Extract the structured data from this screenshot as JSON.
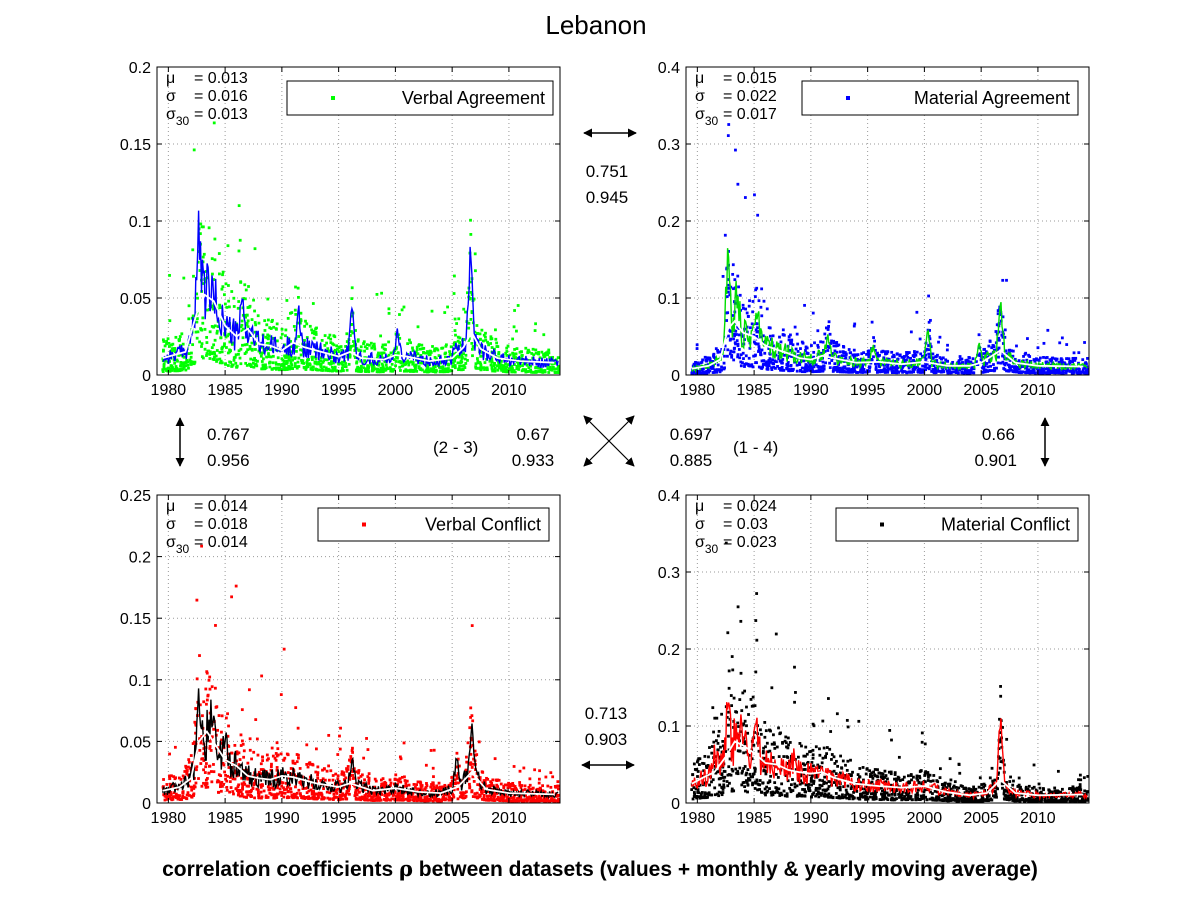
{
  "figure": {
    "title": "Lebanon",
    "xlabel_prefix": "correlation coefficients ",
    "xlabel_symbol": "ρ",
    "xlabel_suffix": " between datasets (values + monthly & yearly moving average)"
  },
  "symbols": {
    "mu": "μ",
    "sigma": "σ",
    "sigma30_base": "σ",
    "sigma30_sub": "30"
  },
  "correlations": {
    "top_h": {
      "a": "0.751",
      "b": "0.945"
    },
    "left_v": {
      "a": "0.767",
      "b": "0.956"
    },
    "right_v": {
      "a": "0.66",
      "b": "0.901"
    },
    "diag_23": {
      "label": "(2 - 3)",
      "a": "0.67",
      "b": "0.933"
    },
    "diag_14": {
      "label": "(1 - 4)",
      "a": "0.697",
      "b": "0.885"
    },
    "bottom_h": {
      "a": "0.713",
      "b": "0.903"
    }
  },
  "chart_data": [
    {
      "type": "scatter",
      "legend": "Verbal Agreement",
      "legend_loc": "top-right",
      "grid": true,
      "xlim": [
        1979,
        2014.5
      ],
      "ylim": [
        0,
        0.2
      ],
      "xticks": [
        "1980",
        "1985",
        "1990",
        "1995",
        "2000",
        "2005",
        "2010"
      ],
      "yticks": [
        "0",
        "0.05",
        "0.1",
        "0.15",
        "0.2"
      ],
      "stats": {
        "mu": "= 0.013",
        "sigma": "= 0.016",
        "sigma30": "= 0.013"
      },
      "colors": {
        "points": "#00ff00",
        "monthly": "#0000ff",
        "yearly": "#ffffff"
      },
      "mean": 0.013,
      "spikes": [
        [
          1982.7,
          0.107
        ],
        [
          1983.5,
          0.06
        ],
        [
          1986.5,
          0.05
        ],
        [
          1991.5,
          0.043
        ],
        [
          1996.2,
          0.05
        ],
        [
          2000.2,
          0.033
        ],
        [
          2005.3,
          0.025
        ],
        [
          2006.6,
          0.085
        ]
      ],
      "yearly": [
        [
          1979.5,
          0.011
        ],
        [
          1980.5,
          0.013
        ],
        [
          1981.5,
          0.015
        ],
        [
          1982.5,
          0.04
        ],
        [
          1983.2,
          0.052
        ],
        [
          1984,
          0.048
        ],
        [
          1985,
          0.032
        ],
        [
          1986,
          0.025
        ],
        [
          1987,
          0.03
        ],
        [
          1988,
          0.02
        ],
        [
          1989,
          0.019
        ],
        [
          1990,
          0.016
        ],
        [
          1991,
          0.021
        ],
        [
          1992,
          0.018
        ],
        [
          1993,
          0.016
        ],
        [
          1995,
          0.012
        ],
        [
          1996,
          0.015
        ],
        [
          1997,
          0.011
        ],
        [
          1999,
          0.01
        ],
        [
          2000,
          0.013
        ],
        [
          2001,
          0.012
        ],
        [
          2003,
          0.009
        ],
        [
          2005,
          0.011
        ],
        [
          2006,
          0.018
        ],
        [
          2006.7,
          0.028
        ],
        [
          2007.5,
          0.017
        ],
        [
          2009,
          0.011
        ],
        [
          2011,
          0.009
        ],
        [
          2014,
          0.008
        ]
      ]
    },
    {
      "type": "scatter",
      "legend": "Material Agreement",
      "legend_loc": "top-right",
      "grid": true,
      "xlim": [
        1979,
        2014.5
      ],
      "ylim": [
        0,
        0.4
      ],
      "xticks": [
        "1980",
        "1985",
        "1990",
        "1995",
        "2000",
        "2005",
        "2010"
      ],
      "yticks": [
        "0",
        "0.1",
        "0.2",
        "0.3",
        "0.4"
      ],
      "stats": {
        "mu": "= 0.015",
        "sigma": "= 0.022",
        "sigma30": "= 0.017"
      },
      "colors": {
        "points": "#0000ff",
        "monthly": "#00dd00",
        "yearly": "#ffffff"
      },
      "mean": 0.015,
      "spikes": [
        [
          1982.7,
          0.18
        ],
        [
          1983.5,
          0.12
        ],
        [
          1985.3,
          0.09
        ],
        [
          1991.5,
          0.065
        ],
        [
          1995.5,
          0.045
        ],
        [
          2000.3,
          0.075
        ],
        [
          2004.8,
          0.045
        ],
        [
          2006.7,
          0.105
        ]
      ],
      "yearly": [
        [
          1979.5,
          0.008
        ],
        [
          1981,
          0.012
        ],
        [
          1982,
          0.02
        ],
        [
          1982.7,
          0.06
        ],
        [
          1983.3,
          0.07
        ],
        [
          1984,
          0.055
        ],
        [
          1985,
          0.05
        ],
        [
          1986,
          0.038
        ],
        [
          1987,
          0.033
        ],
        [
          1988,
          0.028
        ],
        [
          1989,
          0.022
        ],
        [
          1990,
          0.02
        ],
        [
          1991,
          0.025
        ],
        [
          1992,
          0.022
        ],
        [
          1994,
          0.016
        ],
        [
          1996,
          0.017
        ],
        [
          1998,
          0.014
        ],
        [
          2000,
          0.017
        ],
        [
          2002,
          0.012
        ],
        [
          2004,
          0.012
        ],
        [
          2005,
          0.016
        ],
        [
          2006.7,
          0.032
        ],
        [
          2008,
          0.016
        ],
        [
          2010,
          0.012
        ],
        [
          2014,
          0.011
        ]
      ]
    },
    {
      "type": "scatter",
      "legend": "Verbal Conflict",
      "legend_loc": "top-right",
      "grid": true,
      "xlim": [
        1979,
        2014.5
      ],
      "ylim": [
        0,
        0.25
      ],
      "xticks": [
        "1980",
        "1985",
        "1990",
        "1995",
        "2000",
        "2005",
        "2010"
      ],
      "yticks": [
        "0",
        "0.05",
        "0.1",
        "0.15",
        "0.2",
        "0.25"
      ],
      "stats": {
        "mu": "= 0.014",
        "sigma": "= 0.018",
        "sigma30": "= 0.014"
      },
      "colors": {
        "points": "#ff0000",
        "monthly": "#000000",
        "yearly": "#ffffff"
      },
      "mean": 0.014,
      "spikes": [
        [
          1982.7,
          0.1
        ],
        [
          1983.8,
          0.09
        ],
        [
          1985,
          0.06
        ],
        [
          1996.2,
          0.04
        ],
        [
          2005.4,
          0.045
        ],
        [
          2006.7,
          0.07
        ]
      ],
      "yearly": [
        [
          1979.5,
          0.01
        ],
        [
          1981,
          0.013
        ],
        [
          1982,
          0.02
        ],
        [
          1982.7,
          0.05
        ],
        [
          1983.4,
          0.058
        ],
        [
          1984.3,
          0.045
        ],
        [
          1985,
          0.035
        ],
        [
          1986,
          0.03
        ],
        [
          1987,
          0.022
        ],
        [
          1988,
          0.02
        ],
        [
          1989,
          0.019
        ],
        [
          1990,
          0.022
        ],
        [
          1991,
          0.021
        ],
        [
          1993,
          0.016
        ],
        [
          1995,
          0.013
        ],
        [
          1996,
          0.016
        ],
        [
          1998,
          0.01
        ],
        [
          2000,
          0.012
        ],
        [
          2002,
          0.009
        ],
        [
          2004,
          0.008
        ],
        [
          2005.5,
          0.013
        ],
        [
          2006.7,
          0.025
        ],
        [
          2008,
          0.011
        ],
        [
          2010,
          0.008
        ],
        [
          2014,
          0.007
        ]
      ]
    },
    {
      "type": "scatter",
      "legend": "Material Conflict",
      "legend_loc": "top-right",
      "grid": true,
      "xlim": [
        1979,
        2014.5
      ],
      "ylim": [
        0,
        0.4
      ],
      "xticks": [
        "1980",
        "1985",
        "1990",
        "1995",
        "2000",
        "2005",
        "2010"
      ],
      "yticks": [
        "0",
        "0.1",
        "0.2",
        "0.3",
        "0.4"
      ],
      "stats": {
        "mu": "= 0.024",
        "sigma": "= 0.03",
        "sigma30": "= 0.023"
      },
      "colors": {
        "points": "#000000",
        "monthly": "#ff0000",
        "yearly": "#ffffff"
      },
      "mean": 0.024,
      "spikes": [
        [
          1981.5,
          0.08
        ],
        [
          1982.7,
          0.14
        ],
        [
          1983.8,
          0.12
        ],
        [
          1985.2,
          0.1
        ],
        [
          1988.5,
          0.06
        ],
        [
          2006.7,
          0.13
        ]
      ],
      "yearly": [
        [
          1979.5,
          0.025
        ],
        [
          1980.5,
          0.033
        ],
        [
          1981.5,
          0.04
        ],
        [
          1982.5,
          0.06
        ],
        [
          1983.3,
          0.08
        ],
        [
          1984,
          0.075
        ],
        [
          1985,
          0.065
        ],
        [
          1986,
          0.052
        ],
        [
          1987,
          0.05
        ],
        [
          1988,
          0.043
        ],
        [
          1989,
          0.04
        ],
        [
          1990,
          0.038
        ],
        [
          1991,
          0.04
        ],
        [
          1992,
          0.033
        ],
        [
          1994,
          0.025
        ],
        [
          1996,
          0.022
        ],
        [
          1998,
          0.02
        ],
        [
          2000,
          0.022
        ],
        [
          2002,
          0.014
        ],
        [
          2004,
          0.01
        ],
        [
          2005.5,
          0.013
        ],
        [
          2006.7,
          0.03
        ],
        [
          2008,
          0.013
        ],
        [
          2010,
          0.01
        ],
        [
          2014,
          0.011
        ]
      ]
    }
  ]
}
